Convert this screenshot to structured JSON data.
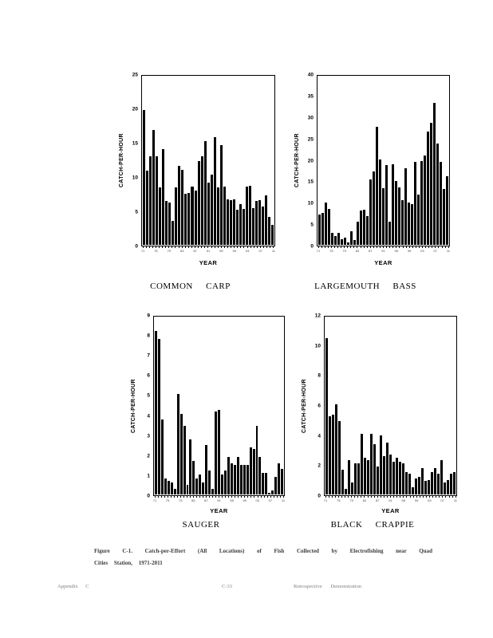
{
  "page": {
    "caption_line1": "Figure C-1. Catch-per-Effort (All Locations) of Fish Collected by Electrofishing near Quad",
    "caption_line2": "Cities Station, 1971-2011",
    "footer_left": "Appendix C",
    "footer_center": "C-33",
    "footer_right": "Retrospective Demonstration"
  },
  "colors": {
    "bar": "#000000",
    "background": "#ffffff"
  },
  "chart_data": [
    {
      "type": "bar",
      "title": "COMMON CARP",
      "ylabel": "CATCH-PER-HOUR",
      "xlabel": "YEAR",
      "ylim": [
        0,
        25
      ],
      "yticks": [
        0,
        5,
        10,
        15,
        20,
        25
      ],
      "grid": false,
      "xtick_labels": [
        "71",
        "75",
        "79",
        "83",
        "87",
        "91",
        "95",
        "99",
        "03",
        "07",
        "11"
      ],
      "categories": [
        1971,
        1972,
        1973,
        1974,
        1975,
        1976,
        1977,
        1978,
        1979,
        1980,
        1981,
        1982,
        1983,
        1984,
        1985,
        1986,
        1987,
        1988,
        1989,
        1990,
        1991,
        1992,
        1993,
        1994,
        1995,
        1996,
        1997,
        1998,
        1999,
        2000,
        2001,
        2002,
        2003,
        2004,
        2005,
        2006,
        2007,
        2008,
        2009,
        2010,
        2011
      ],
      "values": [
        20,
        11,
        13.1,
        17.1,
        13.1,
        8.5,
        14.2,
        6.5,
        6.3,
        3.5,
        8.5,
        11.7,
        11.1,
        7.6,
        7.7,
        8.6,
        8.1,
        12.5,
        13.2,
        15.4,
        9.3,
        10.4,
        16.0,
        8.5,
        14.8,
        8.6,
        6.7,
        6.6,
        6.7,
        5.2,
        6.1,
        5.3,
        8.7,
        8.8,
        5.5,
        6.5,
        6.6,
        5.7,
        7.4,
        4.2,
        3.0
      ]
    },
    {
      "type": "bar",
      "title": "LARGEMOUTH BASS",
      "ylabel": "CATCH-PER-HOUR",
      "xlabel": "YEAR",
      "ylim": [
        0,
        40
      ],
      "yticks": [
        0,
        5,
        10,
        15,
        20,
        25,
        30,
        35,
        40
      ],
      "grid": false,
      "xtick_labels": [
        "71",
        "75",
        "79",
        "83",
        "87",
        "91",
        "95",
        "99",
        "03",
        "07",
        "11"
      ],
      "categories": [
        1971,
        1972,
        1973,
        1974,
        1975,
        1976,
        1977,
        1978,
        1979,
        1980,
        1981,
        1982,
        1983,
        1984,
        1985,
        1986,
        1987,
        1988,
        1989,
        1990,
        1991,
        1992,
        1993,
        1994,
        1995,
        1996,
        1997,
        1998,
        1999,
        2000,
        2001,
        2002,
        2003,
        2004,
        2005,
        2006,
        2007,
        2008,
        2009,
        2010,
        2011
      ],
      "values": [
        7.2,
        7.6,
        10.0,
        8.6,
        2.9,
        2.0,
        2.8,
        1.4,
        1.7,
        0.6,
        3.2,
        1.2,
        5.5,
        8.1,
        8.3,
        6.9,
        15.6,
        17.4,
        28.0,
        20.3,
        13.5,
        19.0,
        5.5,
        19.2,
        15.2,
        13.6,
        10.7,
        18.2,
        10.0,
        9.6,
        19.8,
        12.0,
        19.9,
        21.2,
        27.0,
        29.0,
        33.8,
        24.0,
        19.7,
        13.2,
        16.3
      ]
    },
    {
      "type": "bar",
      "title": "SAUGER",
      "ylabel": "CATCH-PER-HOUR",
      "xlabel": "YEAR",
      "ylim": [
        0,
        9
      ],
      "yticks": [
        0,
        1,
        2,
        3,
        4,
        5,
        6,
        7,
        8,
        9
      ],
      "grid": false,
      "xtick_labels": [
        "71",
        "75",
        "79",
        "83",
        "87",
        "91",
        "95",
        "99",
        "03",
        "07",
        "11"
      ],
      "categories": [
        1971,
        1972,
        1973,
        1974,
        1975,
        1976,
        1977,
        1978,
        1979,
        1980,
        1981,
        1982,
        1983,
        1984,
        1985,
        1986,
        1987,
        1988,
        1989,
        1990,
        1991,
        1992,
        1993,
        1994,
        1995,
        1996,
        1997,
        1998,
        1999,
        2000,
        2001,
        2002,
        2003,
        2004,
        2005,
        2006,
        2007,
        2008,
        2009,
        2010,
        2011
      ],
      "values": [
        8.3,
        7.9,
        3.8,
        0.8,
        0.7,
        0.6,
        0.3,
        5.1,
        4.1,
        3.5,
        0.5,
        2.8,
        1.7,
        0.8,
        1.0,
        0.6,
        2.5,
        1.2,
        0.3,
        4.2,
        4.3,
        1.0,
        1.2,
        1.9,
        1.6,
        1.5,
        1.9,
        1.5,
        1.5,
        1.5,
        2.4,
        2.3,
        3.5,
        1.9,
        1.1,
        1.1,
        0.1,
        0.2,
        0.9,
        1.6,
        1.3
      ]
    },
    {
      "type": "bar",
      "title": "BLACK CRAPPIE",
      "ylabel": "CATCH-PER-HOUR",
      "xlabel": "YEAR",
      "ylim": [
        0,
        12
      ],
      "yticks": [
        0,
        2,
        4,
        6,
        8,
        10,
        12
      ],
      "grid": false,
      "xtick_labels": [
        "71",
        "75",
        "79",
        "83",
        "87",
        "91",
        "95",
        "99",
        "03",
        "07",
        "11"
      ],
      "categories": [
        1971,
        1972,
        1973,
        1974,
        1975,
        1976,
        1977,
        1978,
        1979,
        1980,
        1981,
        1982,
        1983,
        1984,
        1985,
        1986,
        1987,
        1988,
        1989,
        1990,
        1991,
        1992,
        1993,
        1994,
        1995,
        1996,
        1997,
        1998,
        1999,
        2000,
        2001,
        2002,
        2003,
        2004,
        2005,
        2006,
        2007,
        2008,
        2009,
        2010,
        2011
      ],
      "values": [
        10.6,
        5.3,
        5.4,
        6.1,
        5.0,
        1.7,
        0.4,
        2.3,
        0.8,
        2.1,
        2.1,
        4.1,
        2.5,
        2.3,
        4.1,
        3.4,
        1.9,
        4.0,
        2.6,
        3.5,
        2.7,
        2.2,
        2.5,
        2.2,
        2.1,
        1.5,
        1.4,
        0.5,
        1.1,
        1.2,
        1.8,
        0.9,
        1.0,
        1.5,
        1.8,
        1.4,
        2.3,
        0.8,
        1.0,
        1.4,
        1.5
      ]
    }
  ]
}
